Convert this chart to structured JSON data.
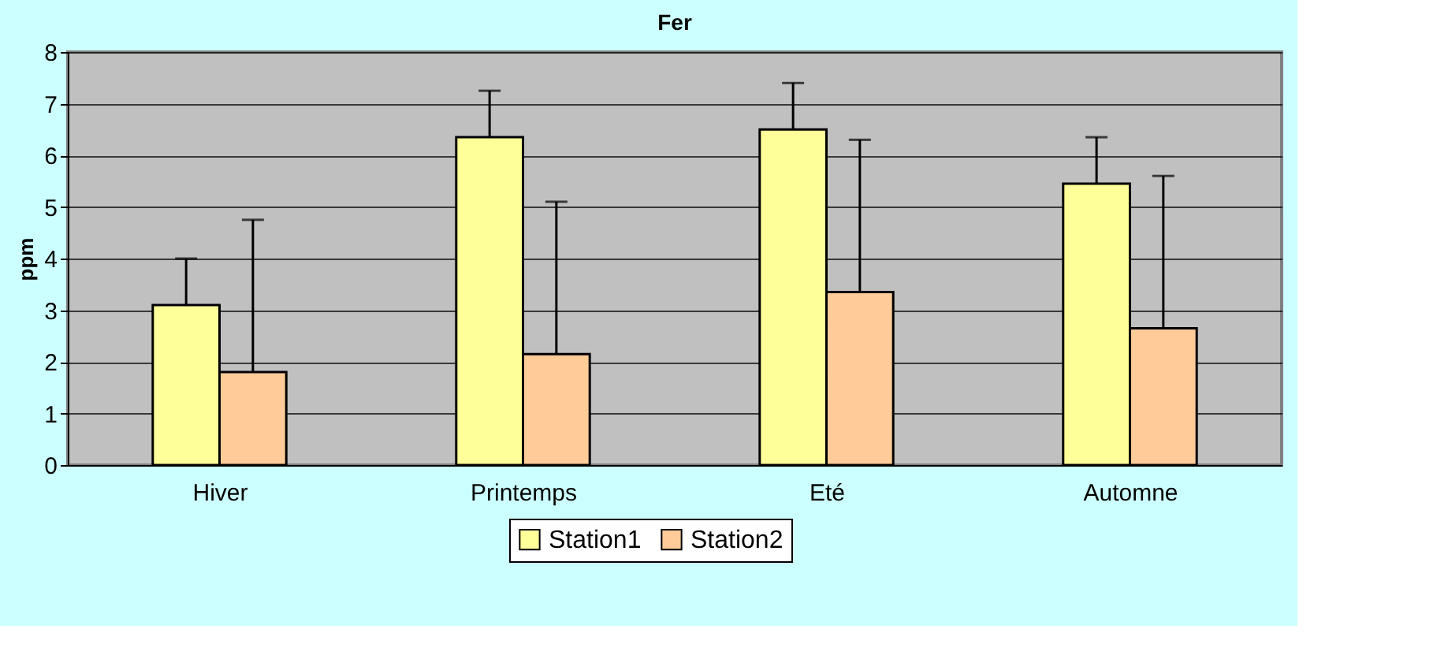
{
  "chart_data": {
    "type": "bar",
    "title": "Fer",
    "ylabel": "ppm",
    "categories": [
      "Hiver",
      "Printemps",
      "Eté",
      "Automne"
    ],
    "series": [
      {
        "name": "Station1",
        "color": "#ffff99",
        "values": [
          3.1,
          6.35,
          6.5,
          5.45
        ],
        "errors": [
          [
            3.1,
            4.0
          ],
          [
            6.35,
            7.25
          ],
          [
            6.5,
            7.4
          ],
          [
            5.45,
            6.35
          ]
        ]
      },
      {
        "name": "Station2",
        "color": "#ffcc99",
        "values": [
          1.8,
          2.15,
          3.35,
          2.65
        ],
        "errors": [
          [
            1.8,
            4.75
          ],
          [
            2.15,
            5.1
          ],
          [
            3.35,
            6.3
          ],
          [
            2.65,
            5.6
          ]
        ]
      }
    ],
    "ylim": [
      0,
      8
    ],
    "yticks": [
      0,
      1,
      2,
      3,
      4,
      5,
      6,
      7,
      8
    ],
    "grid": "y",
    "legend": "bottom"
  }
}
